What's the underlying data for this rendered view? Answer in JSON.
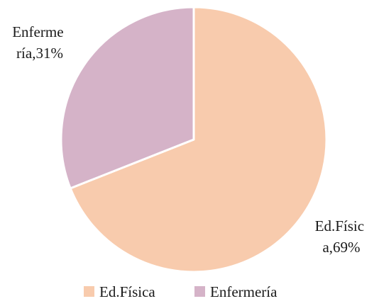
{
  "chart_data": {
    "type": "pie",
    "title": "",
    "categories": [
      "Ed.Física",
      "Enfermería"
    ],
    "values": [
      69,
      31
    ],
    "data_labels": [
      [
        "Ed.Físic",
        "a,69%"
      ],
      [
        "Enferme",
        "ría,31%"
      ]
    ],
    "colors": [
      "#F8CBAD",
      "#D5B3C8"
    ],
    "legend": {
      "position": "bottom",
      "entries": [
        "Ed.Física",
        "Enfermería"
      ]
    },
    "start_angle_deg": 0,
    "direction": "clockwise"
  }
}
